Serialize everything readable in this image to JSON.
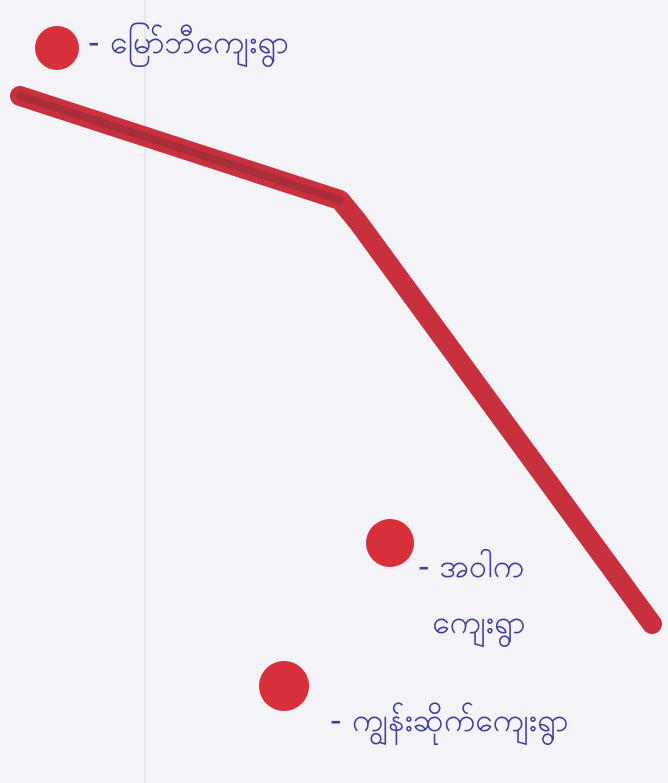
{
  "nodes": [
    {
      "label": "- မြော်ဘီကျေးရွာ"
    },
    {
      "label_lines": [
        "- အဝါက",
        "ကျေးရွာ"
      ]
    },
    {
      "label": "- ကျွန်းဆိုက်ကျေးရွာ"
    }
  ]
}
